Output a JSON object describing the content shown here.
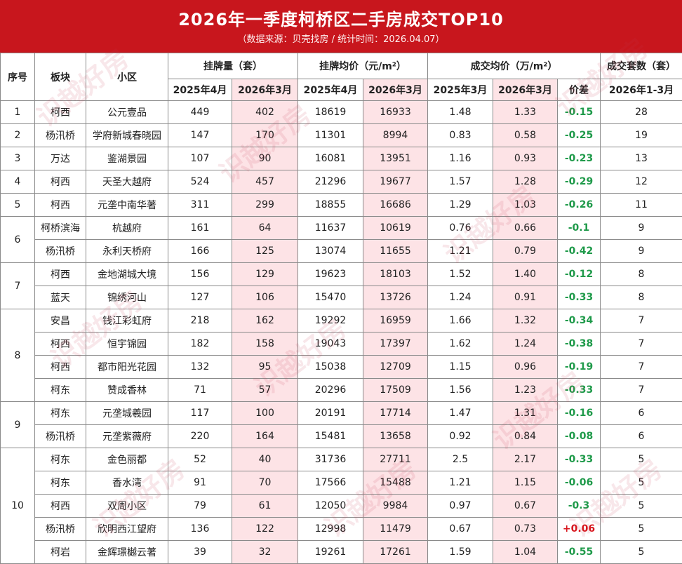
{
  "title": "2026年一季度柯桥区二手房成交TOP10",
  "subtitle": "（数据来源：贝壳找房 / 统计时间：2026.04.07）",
  "watermark": "识越好房",
  "headers": {
    "seq": "序号",
    "block": "板块",
    "community": "小区",
    "listing_qty": "挂牌量（套）",
    "listing_price": "挂牌均价（元/m²）",
    "deal_price": "成交均价（万/m²）",
    "deal_count": "成交套数（套）",
    "listing_qty_a": "2025年4月",
    "listing_qty_b": "2026年3月",
    "listing_price_a": "2025年4月",
    "listing_price_b": "2026年3月",
    "deal_price_a": "2025年3月",
    "deal_price_b": "2026年3月",
    "diff": "价差",
    "deal_count_sub": "2026年1-3月"
  },
  "groups": [
    {
      "seq": "1",
      "rows": [
        {
          "block": "柯西",
          "community": "公元壹品",
          "lq_a": "449",
          "lq_b": "402",
          "lp_a": "18619",
          "lp_b": "16933",
          "dp_a": "1.48",
          "dp_b": "1.33",
          "diff": "-0.15",
          "count": "28"
        }
      ]
    },
    {
      "seq": "2",
      "rows": [
        {
          "block": "杨汛桥",
          "community": "学府新城春晓园",
          "lq_a": "147",
          "lq_b": "170",
          "lp_a": "11301",
          "lp_b": "8994",
          "dp_a": "0.83",
          "dp_b": "0.58",
          "diff": "-0.25",
          "count": "19"
        }
      ]
    },
    {
      "seq": "3",
      "rows": [
        {
          "block": "万达",
          "community": "鉴湖景园",
          "lq_a": "107",
          "lq_b": "90",
          "lp_a": "16081",
          "lp_b": "13951",
          "dp_a": "1.16",
          "dp_b": "0.93",
          "diff": "-0.23",
          "count": "13"
        }
      ]
    },
    {
      "seq": "4",
      "rows": [
        {
          "block": "柯西",
          "community": "天圣大越府",
          "lq_a": "524",
          "lq_b": "457",
          "lp_a": "21296",
          "lp_b": "19677",
          "dp_a": "1.57",
          "dp_b": "1.28",
          "diff": "-0.29",
          "count": "12"
        }
      ]
    },
    {
      "seq": "5",
      "rows": [
        {
          "block": "柯西",
          "community": "元垄中南华著",
          "lq_a": "311",
          "lq_b": "299",
          "lp_a": "18855",
          "lp_b": "16686",
          "dp_a": "1.29",
          "dp_b": "1.03",
          "diff": "-0.26",
          "count": "11"
        }
      ]
    },
    {
      "seq": "6",
      "rows": [
        {
          "block": "柯桥滨海",
          "community": "杭越府",
          "lq_a": "161",
          "lq_b": "64",
          "lp_a": "11637",
          "lp_b": "10619",
          "dp_a": "0.76",
          "dp_b": "0.66",
          "diff": "-0.1",
          "count": "9"
        },
        {
          "block": "杨汛桥",
          "community": "永利天桥府",
          "lq_a": "166",
          "lq_b": "125",
          "lp_a": "13074",
          "lp_b": "11655",
          "dp_a": "1.21",
          "dp_b": "0.79",
          "diff": "-0.42",
          "count": "9"
        }
      ]
    },
    {
      "seq": "7",
      "rows": [
        {
          "block": "柯西",
          "community": "金地湖城大境",
          "lq_a": "156",
          "lq_b": "129",
          "lp_a": "19623",
          "lp_b": "18103",
          "dp_a": "1.52",
          "dp_b": "1.40",
          "diff": "-0.12",
          "count": "8"
        },
        {
          "block": "蓝天",
          "community": "锦绣河山",
          "lq_a": "127",
          "lq_b": "106",
          "lp_a": "15470",
          "lp_b": "13726",
          "dp_a": "1.24",
          "dp_b": "0.91",
          "diff": "-0.33",
          "count": "8"
        }
      ]
    },
    {
      "seq": "8",
      "rows": [
        {
          "block": "安昌",
          "community": "钱江彩虹府",
          "lq_a": "218",
          "lq_b": "162",
          "lp_a": "19292",
          "lp_b": "16959",
          "dp_a": "1.66",
          "dp_b": "1.32",
          "diff": "-0.34",
          "count": "7"
        },
        {
          "block": "柯西",
          "community": "恒宇锦园",
          "lq_a": "182",
          "lq_b": "158",
          "lp_a": "19043",
          "lp_b": "17397",
          "dp_a": "1.62",
          "dp_b": "1.24",
          "diff": "-0.38",
          "count": "7"
        },
        {
          "block": "柯西",
          "community": "都市阳光花园",
          "lq_a": "132",
          "lq_b": "95",
          "lp_a": "15038",
          "lp_b": "12709",
          "dp_a": "1.15",
          "dp_b": "0.96",
          "diff": "-0.19",
          "count": "7"
        },
        {
          "block": "柯东",
          "community": "赞成香林",
          "lq_a": "71",
          "lq_b": "57",
          "lp_a": "20296",
          "lp_b": "17509",
          "dp_a": "1.56",
          "dp_b": "1.23",
          "diff": "-0.33",
          "count": "7"
        }
      ]
    },
    {
      "seq": "9",
      "rows": [
        {
          "block": "柯东",
          "community": "元垄城羲园",
          "lq_a": "117",
          "lq_b": "100",
          "lp_a": "20191",
          "lp_b": "17714",
          "dp_a": "1.47",
          "dp_b": "1.31",
          "diff": "-0.16",
          "count": "6"
        },
        {
          "block": "杨汛桥",
          "community": "元垄紫薇府",
          "lq_a": "220",
          "lq_b": "164",
          "lp_a": "15481",
          "lp_b": "13658",
          "dp_a": "0.92",
          "dp_b": "0.84",
          "diff": "-0.08",
          "count": "6"
        }
      ]
    },
    {
      "seq": "10",
      "rows": [
        {
          "block": "柯东",
          "community": "金色丽都",
          "lq_a": "52",
          "lq_b": "40",
          "lp_a": "31736",
          "lp_b": "27711",
          "dp_a": "2.5",
          "dp_b": "2.17",
          "diff": "-0.33",
          "count": "5"
        },
        {
          "block": "柯东",
          "community": "香水湾",
          "lq_a": "91",
          "lq_b": "70",
          "lp_a": "17566",
          "lp_b": "15488",
          "dp_a": "1.21",
          "dp_b": "1.15",
          "diff": "-0.06",
          "count": "5"
        },
        {
          "block": "柯西",
          "community": "双周小区",
          "lq_a": "79",
          "lq_b": "61",
          "lp_a": "12050",
          "lp_b": "9984",
          "dp_a": "0.97",
          "dp_b": "0.67",
          "diff": "-0.3",
          "count": "5"
        },
        {
          "block": "杨汛桥",
          "community": "欣明西江望府",
          "lq_a": "136",
          "lq_b": "122",
          "lp_a": "12998",
          "lp_b": "11479",
          "dp_a": "0.67",
          "dp_b": "0.73",
          "diff": "+0.06",
          "count": "5"
        },
        {
          "block": "柯岩",
          "community": "金辉璟樾云著",
          "lq_a": "39",
          "lq_b": "32",
          "lp_a": "19261",
          "lp_b": "17261",
          "dp_a": "1.59",
          "dp_b": "1.04",
          "diff": "-0.55",
          "count": "5"
        }
      ]
    }
  ]
}
